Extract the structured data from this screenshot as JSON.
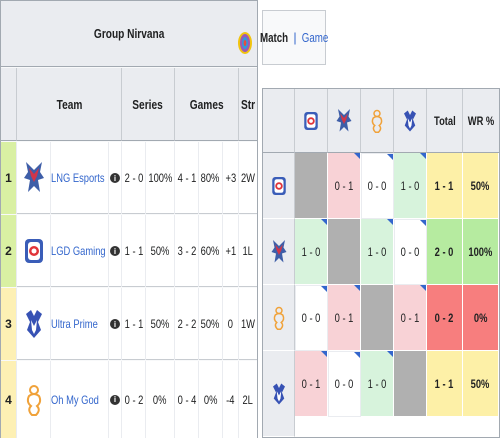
{
  "standings": {
    "group_title": "Group Nirvana",
    "columns": [
      "Team",
      "Series",
      "Games",
      "Str"
    ],
    "rows": [
      {
        "rank": "1",
        "team": "LNG Esports",
        "info": "i",
        "series": "2 - 0",
        "series_pct": "100%",
        "games": "4 - 1",
        "games_pct": "80%",
        "diff": "+3",
        "streak": "2W"
      },
      {
        "rank": "2",
        "team": "LGD Gaming",
        "info": "i",
        "series": "1 - 1",
        "series_pct": "50%",
        "games": "3 - 2",
        "games_pct": "60%",
        "diff": "+1",
        "streak": "1L"
      },
      {
        "rank": "3",
        "team": "Ultra Prime",
        "info": "i",
        "series": "1 - 1",
        "series_pct": "50%",
        "games": "2 - 2",
        "games_pct": "50%",
        "diff": "0",
        "streak": "1W"
      },
      {
        "rank": "4",
        "team": "Oh My God",
        "info": "i",
        "series": "0 - 2",
        "series_pct": "0%",
        "games": "0 - 4",
        "games_pct": "0%",
        "diff": "-4",
        "streak": "2L"
      }
    ]
  },
  "tabs": {
    "match": "Match",
    "separator": "|",
    "game": "Game"
  },
  "matrix": {
    "headers": {
      "total": "Total",
      "wr": "WR %"
    },
    "rows": [
      {
        "cells": [
          "",
          "0 - 1",
          "0 - 0",
          "1 - 0"
        ],
        "total": "1 - 1",
        "wr": "50%"
      },
      {
        "cells": [
          "1 - 0",
          "",
          "1 - 0",
          "0 - 0"
        ],
        "total": "2 - 0",
        "wr": "100%"
      },
      {
        "cells": [
          "0 - 0",
          "0 - 1",
          "",
          "0 - 1"
        ],
        "total": "0 - 2",
        "wr": "0%"
      },
      {
        "cells": [
          "0 - 1",
          "0 - 0",
          "1 - 0",
          ""
        ],
        "total": "1 - 1",
        "wr": "50%"
      }
    ]
  },
  "icons": [
    "lng-logo-icon",
    "lgd-logo-icon",
    "ultra-prime-logo-icon",
    "omg-logo-icon",
    "tournament-logo-icon",
    "info-icon"
  ],
  "colors": {
    "rank_green": "#d9f0a3",
    "rank_yellow": "#fdf0b4",
    "win": "#d7f3dc",
    "loss": "#f8d2d6",
    "total_green": "#b6eba0",
    "total_red": "#f77e7e",
    "total_yellow": "#fdf0a7",
    "link": "#3366cc"
  }
}
